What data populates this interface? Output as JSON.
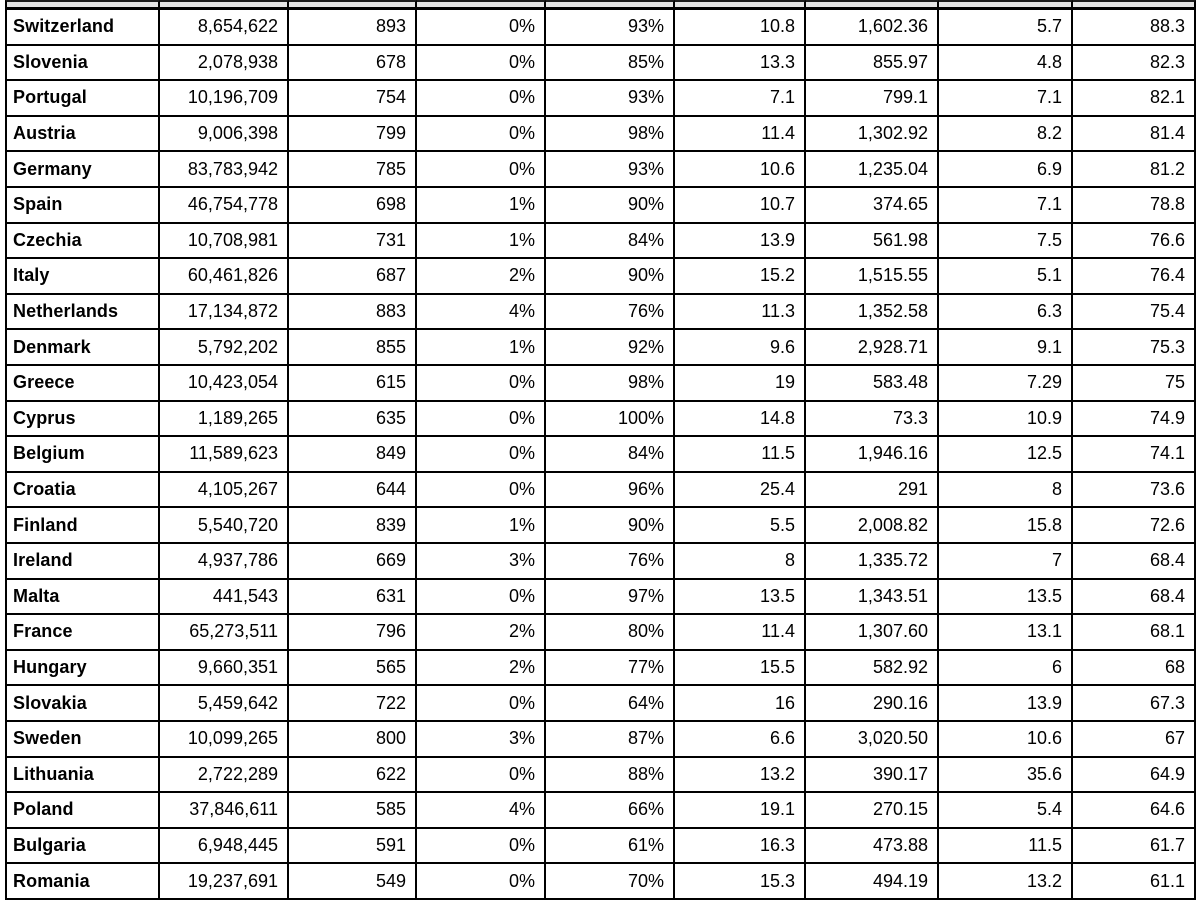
{
  "style": {
    "border_color": "#000000",
    "header_fill": "#e3e3e3",
    "cell_fill": "#ffffff",
    "text_color": "#000000"
  },
  "table": {
    "header_row_cropped": true,
    "header_labels_visible": false,
    "column_count": 9,
    "row_count": 25
  },
  "chart_data": {
    "type": "table",
    "title": "",
    "columns": [
      "",
      "",
      "",
      "",
      "",
      "",
      "",
      "",
      ""
    ],
    "rows": [
      [
        "Switzerland",
        "8,654,622",
        "893",
        "0%",
        "93%",
        "10.8",
        "1,602.36",
        "5.7",
        "88.3"
      ],
      [
        "Slovenia",
        "2,078,938",
        "678",
        "0%",
        "85%",
        "13.3",
        "855.97",
        "4.8",
        "82.3"
      ],
      [
        "Portugal",
        "10,196,709",
        "754",
        "0%",
        "93%",
        "7.1",
        "799.1",
        "7.1",
        "82.1"
      ],
      [
        "Austria",
        "9,006,398",
        "799",
        "0%",
        "98%",
        "11.4",
        "1,302.92",
        "8.2",
        "81.4"
      ],
      [
        "Germany",
        "83,783,942",
        "785",
        "0%",
        "93%",
        "10.6",
        "1,235.04",
        "6.9",
        "81.2"
      ],
      [
        "Spain",
        "46,754,778",
        "698",
        "1%",
        "90%",
        "10.7",
        "374.65",
        "7.1",
        "78.8"
      ],
      [
        "Czechia",
        "10,708,981",
        "731",
        "1%",
        "84%",
        "13.9",
        "561.98",
        "7.5",
        "76.6"
      ],
      [
        "Italy",
        "60,461,826",
        "687",
        "2%",
        "90%",
        "15.2",
        "1,515.55",
        "5.1",
        "76.4"
      ],
      [
        "Netherlands",
        "17,134,872",
        "883",
        "4%",
        "76%",
        "11.3",
        "1,352.58",
        "6.3",
        "75.4"
      ],
      [
        "Denmark",
        "5,792,202",
        "855",
        "1%",
        "92%",
        "9.6",
        "2,928.71",
        "9.1",
        "75.3"
      ],
      [
        "Greece",
        "10,423,054",
        "615",
        "0%",
        "98%",
        "19",
        "583.48",
        "7.29",
        "75"
      ],
      [
        "Cyprus",
        "1,189,265",
        "635",
        "0%",
        "100%",
        "14.8",
        "73.3",
        "10.9",
        "74.9"
      ],
      [
        "Belgium",
        "11,589,623",
        "849",
        "0%",
        "84%",
        "11.5",
        "1,946.16",
        "12.5",
        "74.1"
      ],
      [
        "Croatia",
        "4,105,267",
        "644",
        "0%",
        "96%",
        "25.4",
        "291",
        "8",
        "73.6"
      ],
      [
        "Finland",
        "5,540,720",
        "839",
        "1%",
        "90%",
        "5.5",
        "2,008.82",
        "15.8",
        "72.6"
      ],
      [
        "Ireland",
        "4,937,786",
        "669",
        "3%",
        "76%",
        "8",
        "1,335.72",
        "7",
        "68.4"
      ],
      [
        "Malta",
        "441,543",
        "631",
        "0%",
        "97%",
        "13.5",
        "1,343.51",
        "13.5",
        "68.4"
      ],
      [
        "France",
        "65,273,511",
        "796",
        "2%",
        "80%",
        "11.4",
        "1,307.60",
        "13.1",
        "68.1"
      ],
      [
        "Hungary",
        "9,660,351",
        "565",
        "2%",
        "77%",
        "15.5",
        "582.92",
        "6",
        "68"
      ],
      [
        "Slovakia",
        "5,459,642",
        "722",
        "0%",
        "64%",
        "16",
        "290.16",
        "13.9",
        "67.3"
      ],
      [
        "Sweden",
        "10,099,265",
        "800",
        "3%",
        "87%",
        "6.6",
        "3,020.50",
        "10.6",
        "67"
      ],
      [
        "Lithuania",
        "2,722,289",
        "622",
        "0%",
        "88%",
        "13.2",
        "390.17",
        "35.6",
        "64.9"
      ],
      [
        "Poland",
        "37,846,611",
        "585",
        "4%",
        "66%",
        "19.1",
        "270.15",
        "5.4",
        "64.6"
      ],
      [
        "Bulgaria",
        "6,948,445",
        "591",
        "0%",
        "61%",
        "16.3",
        "473.88",
        "11.5",
        "61.7"
      ],
      [
        "Romania",
        "19,237,691",
        "549",
        "0%",
        "70%",
        "15.3",
        "494.19",
        "13.2",
        "61.1"
      ]
    ]
  }
}
